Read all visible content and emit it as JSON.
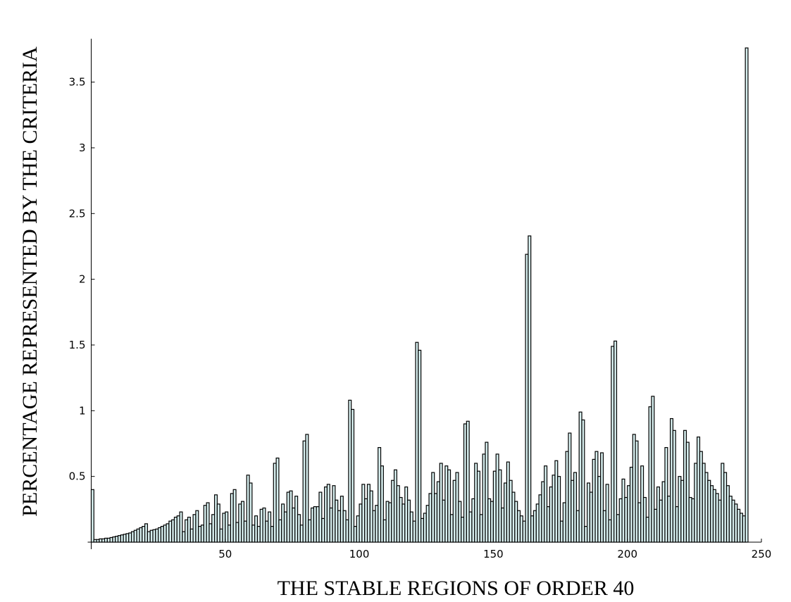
{
  "chart_data": {
    "type": "histogram",
    "xlabel": "THE STABLE REGIONS OF ORDER 40",
    "ylabel": "PERCENTAGE REPRESENTED BY THE CRITERIA",
    "color": "#d8f0f0",
    "edgecolor": "#000000",
    "xlim": [
      0,
      250
    ],
    "ylim": [
      0,
      3.83
    ],
    "xticks": [
      50,
      100,
      150,
      200,
      250
    ],
    "yticks": [
      0.5,
      1,
      1.5,
      2,
      2.5,
      3,
      3.5
    ],
    "bins": [
      0,
      1,
      2,
      3,
      4,
      5,
      6,
      7,
      8,
      9,
      10,
      11,
      12,
      13,
      14,
      15,
      16,
      17,
      18,
      19,
      20,
      21,
      22,
      23,
      24,
      25,
      26,
      27,
      28,
      29,
      30,
      31,
      32,
      33,
      34,
      35,
      36,
      37,
      38,
      39,
      40,
      41,
      42,
      43,
      44,
      45,
      46,
      47,
      48,
      49,
      50,
      51,
      52,
      53,
      54,
      55,
      56,
      57,
      58,
      59,
      60,
      61,
      62,
      63,
      64,
      65,
      66,
      67,
      68,
      69,
      70,
      71,
      72,
      73,
      74,
      75,
      76,
      77,
      78,
      79,
      80,
      81,
      82,
      83,
      84,
      85,
      86,
      87,
      88,
      89,
      90,
      91,
      92,
      93,
      94,
      95,
      96,
      97,
      98,
      99,
      100,
      101,
      102,
      103,
      104,
      105,
      106,
      107,
      108,
      109,
      110,
      111,
      112,
      113,
      114,
      115,
      116,
      117,
      118,
      119,
      120,
      121,
      122,
      123,
      124,
      125,
      126,
      127,
      128,
      129,
      130,
      131,
      132,
      133,
      134,
      135,
      136,
      137,
      138,
      139,
      140,
      141,
      142,
      143,
      144,
      145,
      146,
      147,
      148,
      149,
      150,
      151,
      152,
      153,
      154,
      155,
      156,
      157,
      158,
      159,
      160,
      161,
      162,
      163,
      164,
      165,
      166,
      167,
      168,
      169,
      170,
      171,
      172,
      173,
      174,
      175,
      176,
      177,
      178,
      179,
      180,
      181,
      182,
      183,
      184,
      185,
      186,
      187,
      188,
      189,
      190,
      191,
      192,
      193,
      194,
      195,
      196,
      197,
      198,
      199,
      200,
      201,
      202,
      203,
      204,
      205,
      206,
      207,
      208,
      209,
      210,
      211,
      212,
      213,
      214,
      215,
      216,
      217,
      218,
      219,
      220,
      221,
      222,
      223,
      224,
      225,
      226,
      227,
      228,
      229,
      230,
      231,
      232,
      233,
      234,
      235,
      236,
      237,
      238,
      239,
      240,
      241,
      242,
      243,
      244,
      245
    ],
    "values": [
      0.4,
      0.02,
      0.02,
      0.025,
      0.025,
      0.03,
      0.03,
      0.035,
      0.04,
      0.045,
      0.05,
      0.055,
      0.06,
      0.065,
      0.07,
      0.08,
      0.09,
      0.1,
      0.11,
      0.12,
      0.14,
      0.08,
      0.09,
      0.095,
      0.1,
      0.11,
      0.12,
      0.13,
      0.14,
      0.16,
      0.17,
      0.19,
      0.2,
      0.23,
      0.08,
      0.17,
      0.19,
      0.1,
      0.21,
      0.24,
      0.12,
      0.13,
      0.28,
      0.3,
      0.14,
      0.21,
      0.36,
      0.29,
      0.1,
      0.22,
      0.23,
      0.13,
      0.37,
      0.4,
      0.15,
      0.29,
      0.31,
      0.16,
      0.51,
      0.45,
      0.13,
      0.2,
      0.12,
      0.25,
      0.26,
      0.16,
      0.23,
      0.12,
      0.6,
      0.64,
      0.17,
      0.29,
      0.23,
      0.38,
      0.39,
      0.26,
      0.35,
      0.21,
      0.13,
      0.77,
      0.82,
      0.17,
      0.26,
      0.27,
      0.27,
      0.38,
      0.18,
      0.42,
      0.44,
      0.26,
      0.43,
      0.32,
      0.24,
      0.35,
      0.24,
      0.17,
      1.08,
      1.01,
      0.12,
      0.2,
      0.29,
      0.44,
      0.33,
      0.44,
      0.39,
      0.24,
      0.28,
      0.72,
      0.58,
      0.17,
      0.31,
      0.3,
      0.47,
      0.55,
      0.43,
      0.34,
      0.29,
      0.42,
      0.32,
      0.23,
      0.16,
      1.52,
      1.46,
      0.18,
      0.22,
      0.28,
      0.37,
      0.53,
      0.37,
      0.46,
      0.6,
      0.32,
      0.58,
      0.55,
      0.21,
      0.47,
      0.53,
      0.31,
      0.19,
      0.9,
      0.92,
      0.23,
      0.33,
      0.6,
      0.54,
      0.21,
      0.67,
      0.76,
      0.33,
      0.31,
      0.54,
      0.67,
      0.55,
      0.26,
      0.45,
      0.61,
      0.47,
      0.38,
      0.31,
      0.24,
      0.2,
      0.16,
      2.19,
      2.33,
      0.2,
      0.24,
      0.29,
      0.36,
      0.46,
      0.58,
      0.27,
      0.42,
      0.51,
      0.62,
      0.5,
      0.16,
      0.3,
      0.69,
      0.83,
      0.47,
      0.53,
      0.24,
      0.99,
      0.93,
      0.12,
      0.45,
      0.38,
      0.63,
      0.69,
      0.5,
      0.68,
      0.24,
      0.44,
      0.17,
      1.49,
      1.53,
      0.21,
      0.33,
      0.48,
      0.34,
      0.43,
      0.57,
      0.82,
      0.77,
      0.3,
      0.58,
      0.34,
      0.19,
      1.03,
      1.11,
      0.25,
      0.42,
      0.32,
      0.46,
      0.72,
      0.35,
      0.94,
      0.85,
      0.27,
      0.5,
      0.47,
      0.85,
      0.76,
      0.34,
      0.33,
      0.6,
      0.8,
      0.69,
      0.6,
      0.53,
      0.47,
      0.43,
      0.4,
      0.37,
      0.32,
      0.6,
      0.53,
      0.43,
      0.35,
      0.32,
      0.29,
      0.25,
      0.22,
      0.2,
      3.76
    ]
  }
}
